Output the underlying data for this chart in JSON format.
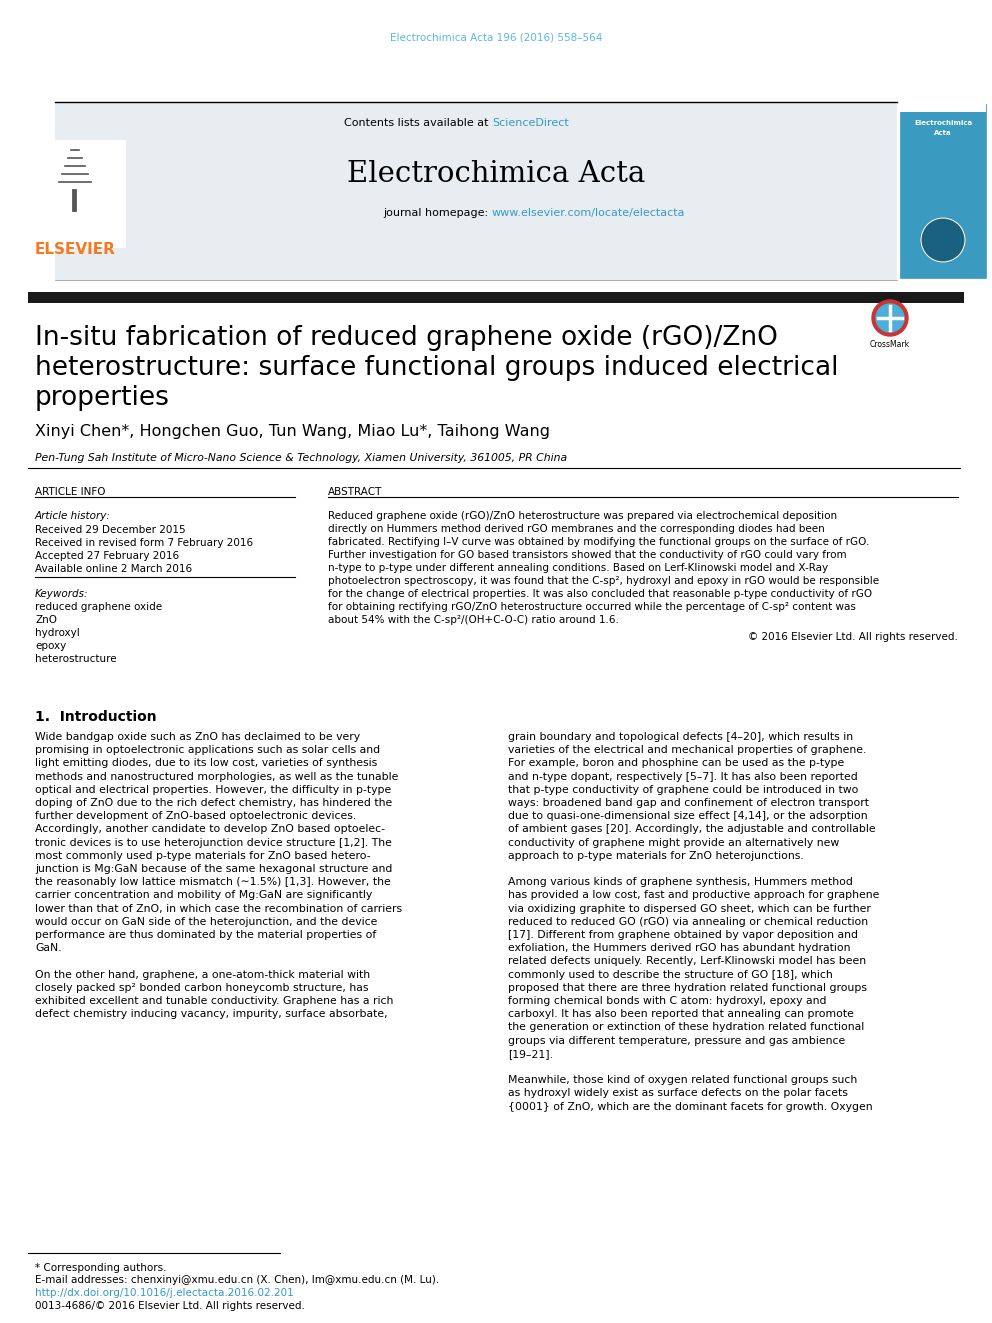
{
  "page_bg": "#ffffff",
  "top_citation": "Electrochimica Acta 196 (2016) 558–564",
  "top_citation_color": "#5bb8e8",
  "header_bg": "#e8edf2",
  "header_sciencedirect_color": "#3399cc",
  "journal_name": "Electrochimica Acta",
  "journal_homepage_url": "www.elsevier.com/locate/electacta",
  "journal_url_color": "#3399cc",
  "article_title_line1": "In-situ fabrication of reduced graphene oxide (rGO)/ZnO",
  "article_title_line2": "heterostructure: surface functional groups induced electrical",
  "article_title_line3": "properties",
  "authors": "Xinyi Chen*, Hongchen Guo, Tun Wang, Miao Lu*, Taihong Wang",
  "affiliation": "Pen-Tung Sah Institute of Micro-Nano Science & Technology, Xiamen University, 361005, PR China",
  "section_article_info": "ARTICLE INFO",
  "section_abstract": "ABSTRACT",
  "article_history_label": "Article history:",
  "received1": "Received 29 December 2015",
  "received2": "Received in revised form 7 February 2016",
  "accepted": "Accepted 27 February 2016",
  "available": "Available online 2 March 2016",
  "keywords_label": "Keywords:",
  "keywords": [
    "reduced graphene oxide",
    "ZnO",
    "hydroxyl",
    "epoxy",
    "heterostructure"
  ],
  "abstract_lines": [
    "Reduced graphene oxide (rGO)/ZnO heterostructure was prepared via electrochemical deposition",
    "directly on Hummers method derived rGO membranes and the corresponding diodes had been",
    "fabricated. Rectifying I–V curve was obtained by modifying the functional groups on the surface of rGO.",
    "Further investigation for GO based transistors showed that the conductivity of rGO could vary from",
    "n-type to p-type under different annealing conditions. Based on Lerf-Klinowski model and X-Ray",
    "photoelectron spectroscopy, it was found that the C-sp², hydroxyl and epoxy in rGO would be responsible",
    "for the change of electrical properties. It was also concluded that reasonable p-type conductivity of rGO",
    "for obtaining rectifying rGO/ZnO heterostructure occurred while the percentage of C-sp² content was",
    "about 54% with the C-sp²/(OH+C-O-C) ratio around 1.6."
  ],
  "copyright": "© 2016 Elsevier Ltd. All rights reserved.",
  "intro_heading": "1.  Introduction",
  "intro_col1_lines": [
    "Wide bandgap oxide such as ZnO has declaimed to be very",
    "promising in optoelectronic applications such as solar cells and",
    "light emitting diodes, due to its low cost, varieties of synthesis",
    "methods and nanostructured morphologies, as well as the tunable",
    "optical and electrical properties. However, the difficulty in p-type",
    "doping of ZnO due to the rich defect chemistry, has hindered the",
    "further development of ZnO-based optoelectronic devices.",
    "Accordingly, another candidate to develop ZnO based optoelec-",
    "tronic devices is to use heterojunction device structure [1,2]. The",
    "most commonly used p-type materials for ZnO based hetero-",
    "junction is Mg:GaN because of the same hexagonal structure and",
    "the reasonably low lattice mismatch (∼1.5%) [1,3]. However, the",
    "carrier concentration and mobility of Mg:GaN are significantly",
    "lower than that of ZnO, in which case the recombination of carriers",
    "would occur on GaN side of the heterojunction, and the device",
    "performance are thus dominated by the material properties of",
    "GaN.",
    "",
    "On the other hand, graphene, a one-atom-thick material with",
    "closely packed sp² bonded carbon honeycomb structure, has",
    "exhibited excellent and tunable conductivity. Graphene has a rich",
    "defect chemistry inducing vacancy, impurity, surface absorbate,"
  ],
  "intro_col2_lines": [
    "grain boundary and topological defects [4–20], which results in",
    "varieties of the electrical and mechanical properties of graphene.",
    "For example, boron and phosphine can be used as the p-type",
    "and n-type dopant, respectively [5–7]. It has also been reported",
    "that p-type conductivity of graphene could be introduced in two",
    "ways: broadened band gap and confinement of electron transport",
    "due to quasi-one-dimensional size effect [4,14], or the adsorption",
    "of ambient gases [20]. Accordingly, the adjustable and controllable",
    "conductivity of graphene might provide an alternatively new",
    "approach to p-type materials for ZnO heterojunctions.",
    "",
    "Among various kinds of graphene synthesis, Hummers method",
    "has provided a low cost, fast and productive approach for graphene",
    "via oxidizing graphite to dispersed GO sheet, which can be further",
    "reduced to reduced GO (rGO) via annealing or chemical reduction",
    "[17]. Different from graphene obtained by vapor deposition and",
    "exfoliation, the Hummers derived rGO has abundant hydration",
    "related defects uniquely. Recently, Lerf-Klinowski model has been",
    "commonly used to describe the structure of GO [18], which",
    "proposed that there are three hydration related functional groups",
    "forming chemical bonds with C atom: hydroxyl, epoxy and",
    "carboxyl. It has also been reported that annealing can promote",
    "the generation or extinction of these hydration related functional",
    "groups via different temperature, pressure and gas ambience",
    "[19–21].",
    "",
    "Meanwhile, those kind of oxygen related functional groups such",
    "as hydroxyl widely exist as surface defects on the polar facets",
    "{0001} of ZnO, which are the dominant facets for growth. Oxygen"
  ],
  "footnote_star": "* Corresponding authors.",
  "footnote_email": "E-mail addresses: chenxinyi@xmu.edu.cn (X. Chen), lm@xmu.edu.cn (M. Lu).",
  "footnote_doi": "http://dx.doi.org/10.1016/j.electacta.2016.02.201",
  "footnote_issn": "0013-4686/© 2016 Elsevier Ltd. All rights reserved.",
  "elsevier_color": "#f47920",
  "dark_bar_color": "#1a1a1a"
}
